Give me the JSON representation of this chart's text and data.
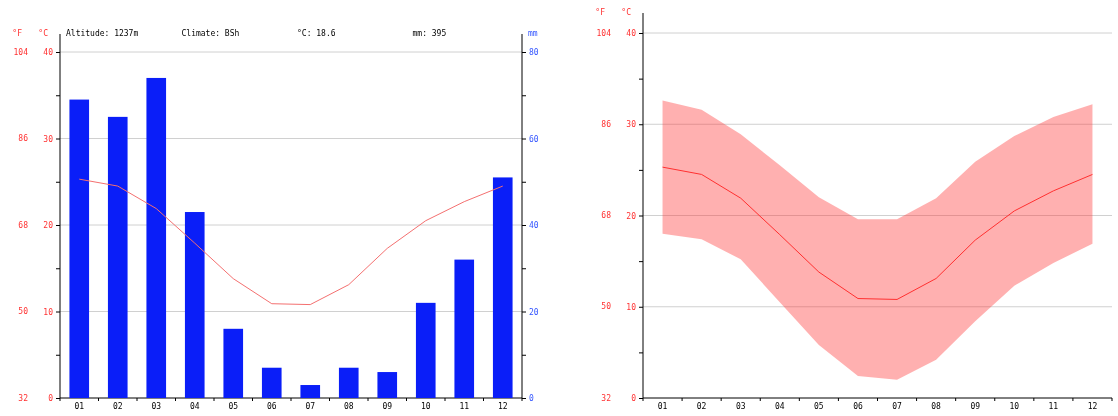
{
  "chart_data": [
    {
      "type": "bar",
      "annotations": [
        "Altitude: 1237m",
        "Climate: BSh",
        "°C: 18.6",
        "mm: 395"
      ],
      "ylabel": "°C",
      "y2label": "mm",
      "y3label": "°F",
      "categories": [
        "01",
        "02",
        "03",
        "04",
        "05",
        "06",
        "07",
        "08",
        "09",
        "10",
        "11",
        "12"
      ],
      "ylim": [
        0,
        40
      ],
      "yticks": [
        0,
        {
          "value": 5,
          "label": null
        },
        10,
        {
          "value": 15,
          "label": null
        },
        20,
        {
          "value": 25,
          "label": null
        },
        30,
        {
          "value": 35,
          "label": null
        },
        40
      ],
      "y2lim": [
        0,
        80
      ],
      "y2ticks": [
        0,
        {
          "value": 10,
          "label": null
        },
        20,
        {
          "value": 30,
          "label": null
        },
        40,
        {
          "value": 50,
          "label": null
        },
        60,
        {
          "value": 70,
          "label": null
        },
        80
      ],
      "y3lim": [
        32,
        104
      ],
      "y3ticks": [
        32,
        50,
        68,
        86,
        104
      ],
      "grid": "y",
      "series": [
        {
          "axis": "y2",
          "color": "#0a1ef8",
          "values": [
            69,
            65,
            74,
            43,
            16,
            7,
            3,
            7,
            6,
            22,
            32,
            51
          ]
        },
        {
          "type": "line",
          "color": "#f47070",
          "values": [
            25.3,
            24.5,
            21.9,
            17.9,
            13.8,
            10.9,
            10.8,
            13.1,
            17.3,
            20.5,
            22.7,
            24.5
          ]
        }
      ]
    },
    {
      "type": "line",
      "ylabel": "°C",
      "y3label": "°F",
      "categories": [
        "01",
        "02",
        "03",
        "04",
        "05",
        "06",
        "07",
        "08",
        "09",
        "10",
        "11",
        "12"
      ],
      "ylim": [
        0,
        40
      ],
      "yticks": [
        0,
        {
          "value": 5,
          "label": null
        },
        10,
        {
          "value": 15,
          "label": null
        },
        20,
        {
          "value": 25,
          "label": null
        },
        30,
        {
          "value": 35,
          "label": null
        },
        40
      ],
      "y3lim": [
        32,
        104
      ],
      "y3ticks": [
        32,
        50,
        68,
        86,
        104
      ],
      "grid": "y",
      "series": [
        {
          "color": "#ff3030",
          "values": [
            25.3,
            24.5,
            21.9,
            17.9,
            13.8,
            10.9,
            10.8,
            13.1,
            17.3,
            20.5,
            22.7,
            24.5
          ],
          "lower": [
            18.0,
            17.4,
            15.2,
            10.5,
            5.8,
            2.4,
            2.0,
            4.2,
            8.4,
            12.3,
            14.8,
            16.9
          ],
          "upper": [
            32.6,
            31.6,
            28.9,
            25.5,
            22.0,
            19.6,
            19.6,
            21.9,
            25.9,
            28.7,
            30.8,
            32.2
          ]
        }
      ]
    }
  ]
}
